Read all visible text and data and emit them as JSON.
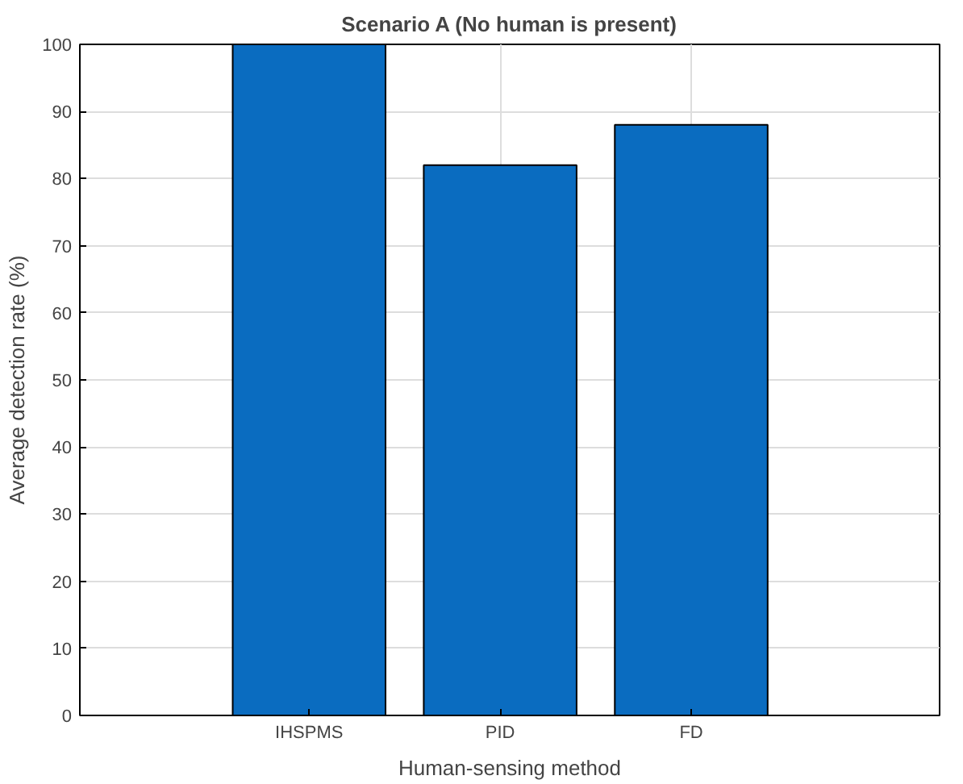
{
  "chart_data": {
    "type": "bar",
    "title": "Scenario A (No human is present)",
    "xlabel": "Human-sensing method",
    "ylabel": "Average detection rate (%)",
    "categories": [
      "IHSPMS",
      "PID",
      "FD"
    ],
    "values": [
      100,
      82,
      88
    ],
    "color": "#0a6cc0",
    "ylim": [
      0,
      100
    ],
    "yticks": [
      0,
      10,
      20,
      30,
      40,
      50,
      60,
      70,
      80,
      90,
      100
    ],
    "grid": true
  }
}
